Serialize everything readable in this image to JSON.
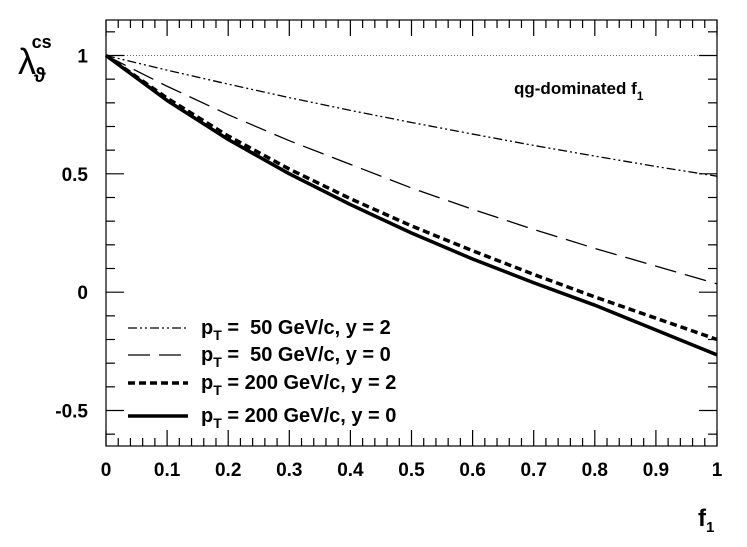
{
  "chart_data": {
    "type": "line",
    "title": "",
    "xlabel": {
      "main": "f",
      "sub": "1"
    },
    "ylabel": {
      "main": "λ",
      "sub": "ϑ",
      "sup": "cs"
    },
    "xlim": [
      0,
      1
    ],
    "ylim": [
      -0.65,
      1.15
    ],
    "x_ticks": [
      {
        "value": 0,
        "label": "0"
      },
      {
        "value": 0.1,
        "label": "0.1"
      },
      {
        "value": 0.2,
        "label": "0.2"
      },
      {
        "value": 0.3,
        "label": "0.3"
      },
      {
        "value": 0.4,
        "label": "0.4"
      },
      {
        "value": 0.5,
        "label": "0.5"
      },
      {
        "value": 0.6,
        "label": "0.6"
      },
      {
        "value": 0.7,
        "label": "0.7"
      },
      {
        "value": 0.8,
        "label": "0.8"
      },
      {
        "value": 0.9,
        "label": "0.9"
      },
      {
        "value": 1,
        "label": "1"
      }
    ],
    "y_ticks": [
      {
        "value": -0.5,
        "label": "-0.5"
      },
      {
        "value": 0,
        "label": "0"
      },
      {
        "value": 0.5,
        "label": "0.5"
      },
      {
        "value": 1,
        "label": "1"
      }
    ],
    "reference_line": {
      "y": 1,
      "style": "dotted"
    },
    "annotation": {
      "text": "qg-dominated f",
      "sub": "1"
    },
    "legend_position": "bottom-left",
    "series": [
      {
        "name": "pT = 50 GeV/c, y = 2",
        "legend": {
          "p": "p",
          "sub": "T",
          "rest": " =  50 GeV/c, y = 2"
        },
        "style": "dashdot",
        "x": [
          0,
          0.1,
          0.2,
          0.3,
          0.4,
          0.5,
          0.6,
          0.7,
          0.8,
          0.9,
          1.0
        ],
        "y": [
          1.0,
          0.938,
          0.879,
          0.822,
          0.768,
          0.717,
          0.668,
          0.62,
          0.575,
          0.531,
          0.49
        ]
      },
      {
        "name": "pT = 50 GeV/c, y = 0",
        "legend": {
          "p": "p",
          "sub": "T",
          "rest": " =  50 GeV/c, y = 0"
        },
        "style": "longdash",
        "x": [
          0,
          0.1,
          0.2,
          0.3,
          0.4,
          0.5,
          0.6,
          0.7,
          0.8,
          0.9,
          1.0
        ],
        "y": [
          1.0,
          0.87,
          0.75,
          0.64,
          0.54,
          0.44,
          0.35,
          0.265,
          0.185,
          0.11,
          0.035
        ]
      },
      {
        "name": "pT = 200 GeV/c, y = 2",
        "legend": {
          "p": "p",
          "sub": "T",
          "rest": " = 200 GeV/c, y = 2"
        },
        "style": "dashed",
        "x": [
          0,
          0.1,
          0.2,
          0.3,
          0.4,
          0.5,
          0.6,
          0.7,
          0.8,
          0.9,
          1.0
        ],
        "y": [
          1.0,
          0.82,
          0.66,
          0.52,
          0.395,
          0.28,
          0.175,
          0.075,
          -0.02,
          -0.11,
          -0.2
        ]
      },
      {
        "name": "pT = 200 GeV/c, y = 0",
        "legend": {
          "p": "p",
          "sub": "T",
          "rest": " = 200 GeV/c, y = 0"
        },
        "style": "solid",
        "x": [
          0,
          0.1,
          0.2,
          0.3,
          0.4,
          0.5,
          0.6,
          0.7,
          0.8,
          0.9,
          1.0
        ],
        "y": [
          1.0,
          0.81,
          0.645,
          0.5,
          0.37,
          0.25,
          0.14,
          0.04,
          -0.055,
          -0.16,
          -0.265
        ]
      }
    ]
  }
}
